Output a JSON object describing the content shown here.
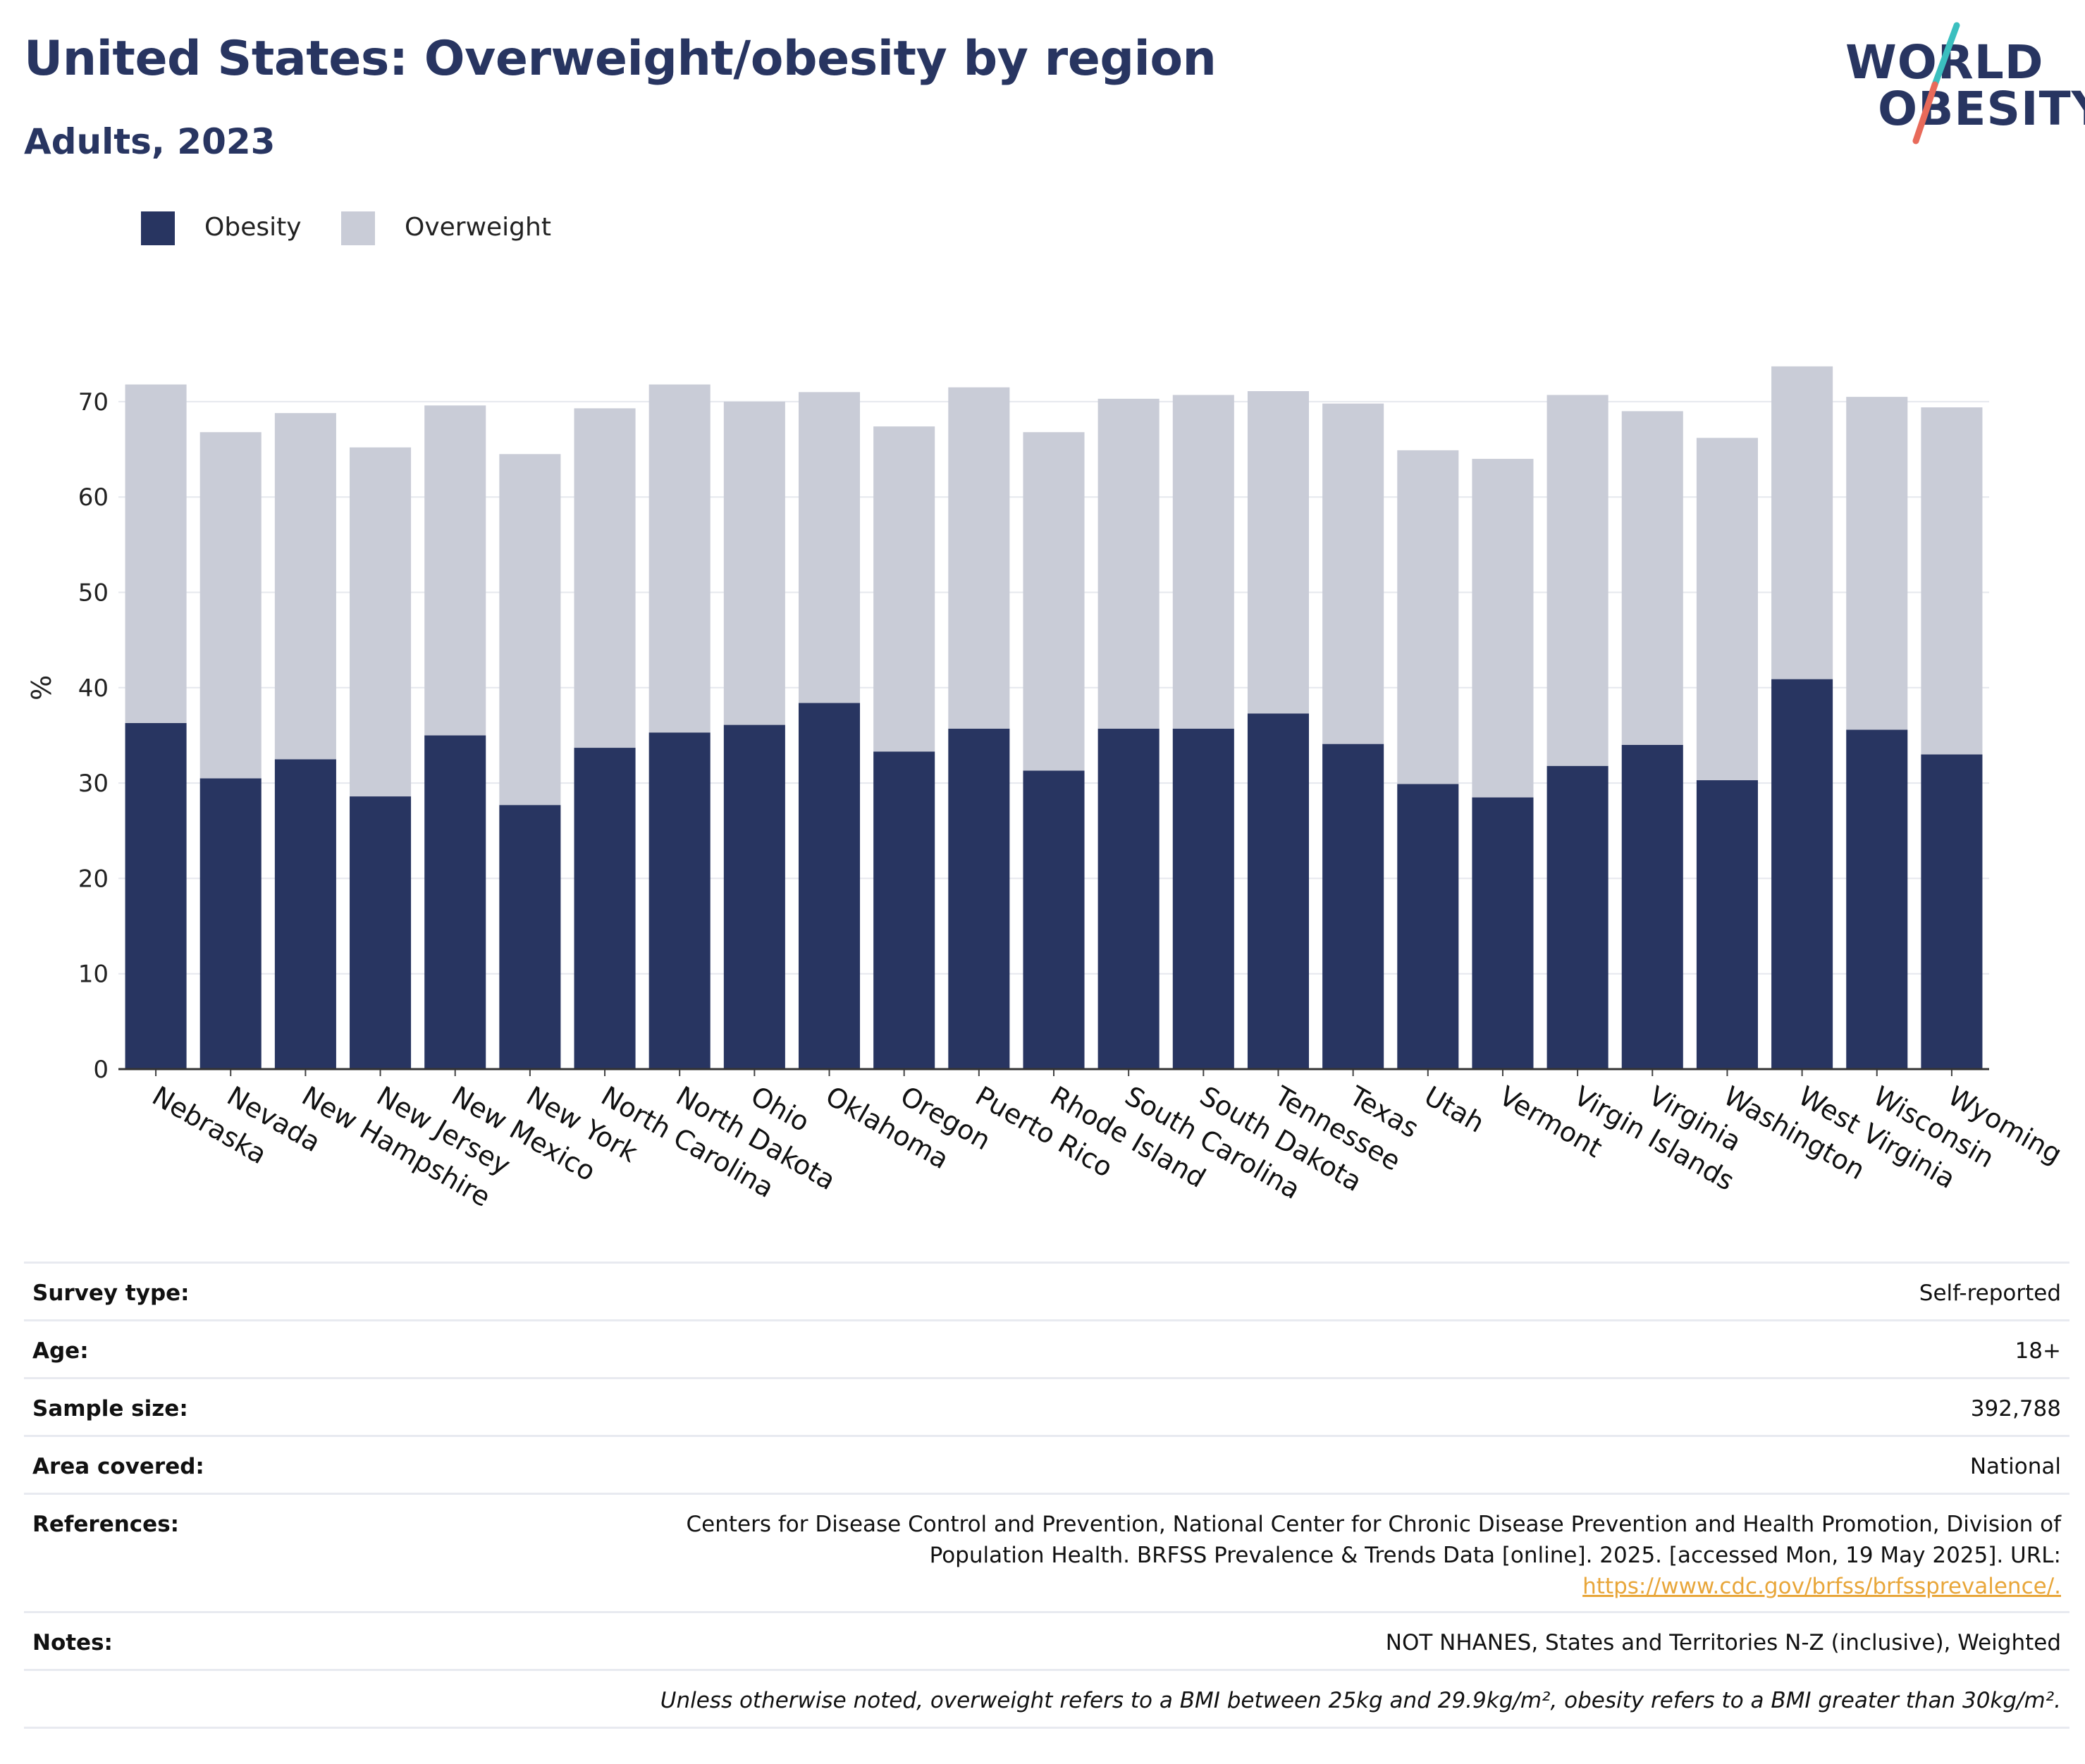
{
  "header": {
    "title": "United States: Overweight/obesity by region",
    "subtitle": "Adults, 2023"
  },
  "logo": {
    "line1": "WORLD",
    "line2": "OBESITY",
    "slash_colors": [
      "#3bbfbf",
      "#e86a5a"
    ]
  },
  "colors": {
    "obesity": "#283561",
    "overweight": "#c9ccd7",
    "text": "#283561",
    "grid": "#e6e8ee"
  },
  "legend": [
    {
      "label": "Obesity",
      "color": "#283561"
    },
    {
      "label": "Overweight",
      "color": "#c9ccd7"
    }
  ],
  "chart_data": {
    "type": "bar",
    "stacked": true,
    "ylabel": "%",
    "ylim": [
      0,
      74
    ],
    "yticks": [
      0,
      10,
      20,
      30,
      40,
      50,
      60,
      70
    ],
    "grid": true,
    "legend_position": "top-left",
    "categories": [
      "Nebraska",
      "Nevada",
      "New Hampshire",
      "New Jersey",
      "New Mexico",
      "New York",
      "North Carolina",
      "North Dakota",
      "Ohio",
      "Oklahoma",
      "Oregon",
      "Puerto Rico",
      "Rhode Island",
      "South Carolina",
      "South Dakota",
      "Tennessee",
      "Texas",
      "Utah",
      "Vermont",
      "Virgin Islands",
      "Virginia",
      "Washington",
      "West Virginia",
      "Wisconsin",
      "Wyoming"
    ],
    "series": [
      {
        "name": "Obesity",
        "values": [
          36.3,
          30.5,
          32.5,
          28.6,
          35.0,
          27.7,
          33.7,
          35.3,
          36.1,
          38.4,
          33.3,
          35.7,
          31.3,
          35.7,
          35.7,
          37.3,
          34.1,
          29.9,
          28.5,
          31.8,
          34.0,
          30.3,
          40.9,
          35.6,
          33.0
        ]
      },
      {
        "name": "Overweight",
        "values": [
          35.5,
          36.3,
          36.3,
          36.6,
          34.6,
          36.8,
          35.6,
          36.5,
          33.9,
          32.6,
          34.1,
          35.8,
          35.5,
          34.6,
          35.0,
          33.8,
          35.7,
          35.0,
          35.5,
          38.9,
          35.0,
          35.9,
          32.8,
          34.9,
          36.4
        ]
      }
    ]
  },
  "meta": {
    "rows": [
      {
        "label": "Survey type:",
        "value": "Self-reported"
      },
      {
        "label": "Age:",
        "value": "18+"
      },
      {
        "label": "Sample size:",
        "value": "392,788"
      },
      {
        "label": "Area covered:",
        "value": "National"
      },
      {
        "label": "References:",
        "value_lines": [
          "Centers for Disease Control and Prevention, National Center for Chronic Disease Prevention and Health Promotion, Division of",
          "Population Health. BRFSS Prevalence & Trends Data [online]. 2025. [accessed Mon, 19 May 2025]. URL:"
        ],
        "link": "https://www.cdc.gov/brfss/brfssprevalence/."
      },
      {
        "label": "Notes:",
        "value": "NOT NHANES, States and Territories N-Z (inclusive), Weighted"
      }
    ],
    "footnote": "Unless otherwise noted, overweight refers to a BMI between 25kg and 29.9kg/m², obesity refers to a BMI greater than 30kg/m²."
  }
}
